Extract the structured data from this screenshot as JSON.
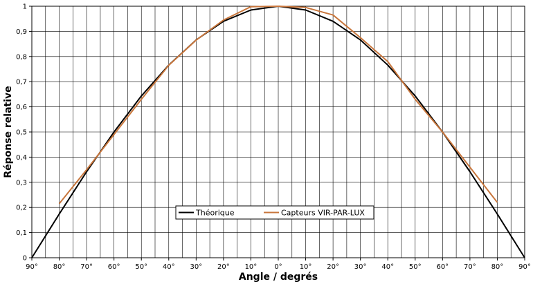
{
  "chart_data": {
    "type": "line",
    "xlabel": "Angle / degrés",
    "ylabel": "Réponse relative",
    "ylim": [
      0,
      1
    ],
    "xlim": [
      -90,
      90
    ],
    "grid": true,
    "legend_position": "bottom-center",
    "x_tick_values": [
      -90,
      -80,
      -70,
      -60,
      -50,
      -40,
      -30,
      -20,
      -10,
      0,
      10,
      20,
      30,
      40,
      50,
      60,
      70,
      80,
      90
    ],
    "x_tick_labels": [
      "90°",
      "80°",
      "70°",
      "60°",
      "50°",
      "40°",
      "30°",
      "20°",
      "10°",
      "0°",
      "10°",
      "20°",
      "30°",
      "40°",
      "50°",
      "60°",
      "70°",
      "80°",
      "90°"
    ],
    "y_tick_values": [
      0,
      0.1,
      0.2,
      0.3,
      0.4,
      0.5,
      0.6,
      0.7,
      0.8,
      0.9,
      1
    ],
    "y_tick_labels": [
      "0",
      "0,1",
      "0,2",
      "0,3",
      "0,4",
      "0,5",
      "0,6",
      "0,7",
      "0,8",
      "0,9",
      "1"
    ],
    "series": [
      {
        "name": "Théorique",
        "color": "#000000",
        "x": [
          -90,
          -80,
          -70,
          -60,
          -50,
          -40,
          -30,
          -20,
          -10,
          0,
          10,
          20,
          30,
          40,
          50,
          60,
          70,
          80,
          90
        ],
        "y": [
          0,
          0.174,
          0.342,
          0.5,
          0.643,
          0.766,
          0.866,
          0.94,
          0.985,
          1,
          0.985,
          0.94,
          0.866,
          0.766,
          0.643,
          0.5,
          0.342,
          0.174,
          0
        ]
      },
      {
        "name": "Capteurs VIR-PAR-LUX",
        "color": "#c8763c",
        "x": [
          -80,
          -70,
          -60,
          -50,
          -40,
          -30,
          -20,
          -10,
          0,
          10,
          20,
          30,
          40,
          50,
          60,
          70,
          80
        ],
        "y": [
          0.215,
          0.35,
          0.49,
          0.63,
          0.765,
          0.865,
          0.945,
          0.998,
          1,
          0.995,
          0.965,
          0.875,
          0.78,
          0.63,
          0.5,
          0.36,
          0.22
        ]
      }
    ]
  }
}
